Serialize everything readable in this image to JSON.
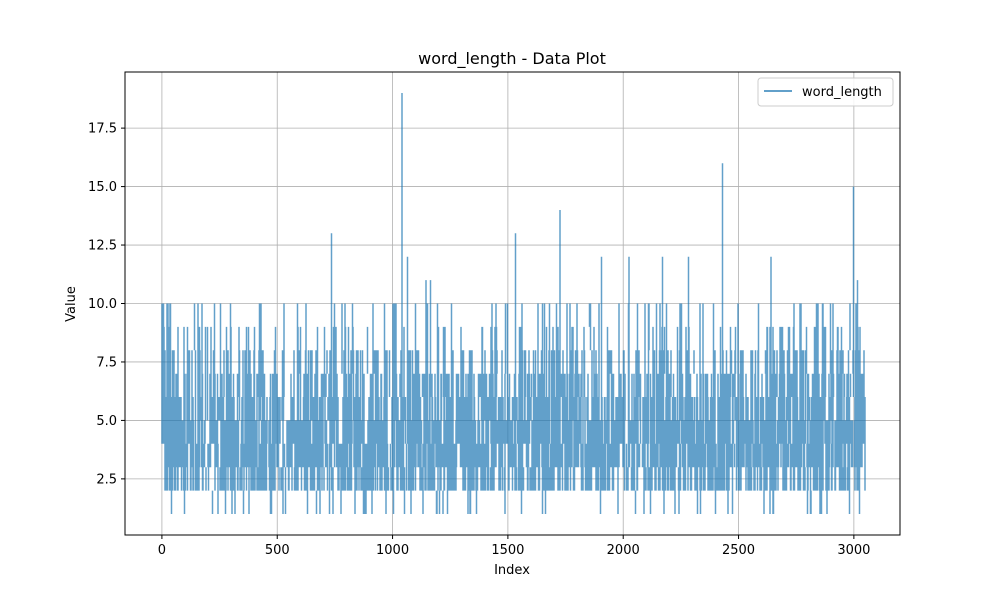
{
  "chart_data": {
    "type": "line",
    "title": "word_length - Data Plot",
    "xlabel": "Index",
    "ylabel": "Value",
    "xlim": [
      -160,
      3200
    ],
    "ylim": [
      0.1,
      19.9
    ],
    "x_ticks": [
      0,
      500,
      1000,
      1500,
      2000,
      2500,
      3000
    ],
    "x_tick_labels": [
      "0",
      "500",
      "1000",
      "1500",
      "2000",
      "2500",
      "3000"
    ],
    "y_ticks": [
      2.5,
      5.0,
      7.5,
      10.0,
      12.5,
      15.0,
      17.5
    ],
    "y_tick_labels": [
      "2.5",
      "5.0",
      "7.5",
      "10.0",
      "12.5",
      "15.0",
      "17.5"
    ],
    "grid": true,
    "legend_position": "top-right",
    "series": [
      {
        "name": "word_length",
        "color": "#1f77b4",
        "opacity": 0.7,
        "n_points": 3050,
        "min": 1,
        "max": 19,
        "typical_range": [
          2,
          8
        ],
        "peaks": [
          {
            "x": 735,
            "y": 13
          },
          {
            "x": 1042,
            "y": 19
          },
          {
            "x": 1065,
            "y": 12
          },
          {
            "x": 1145,
            "y": 11
          },
          {
            "x": 1165,
            "y": 11
          },
          {
            "x": 1532,
            "y": 13
          },
          {
            "x": 1725,
            "y": 14
          },
          {
            "x": 1905,
            "y": 12
          },
          {
            "x": 2025,
            "y": 12
          },
          {
            "x": 2170,
            "y": 12
          },
          {
            "x": 2283,
            "y": 12
          },
          {
            "x": 2430,
            "y": 16
          },
          {
            "x": 2640,
            "y": 12
          },
          {
            "x": 2998,
            "y": 15
          },
          {
            "x": 3015,
            "y": 11
          }
        ]
      }
    ]
  }
}
